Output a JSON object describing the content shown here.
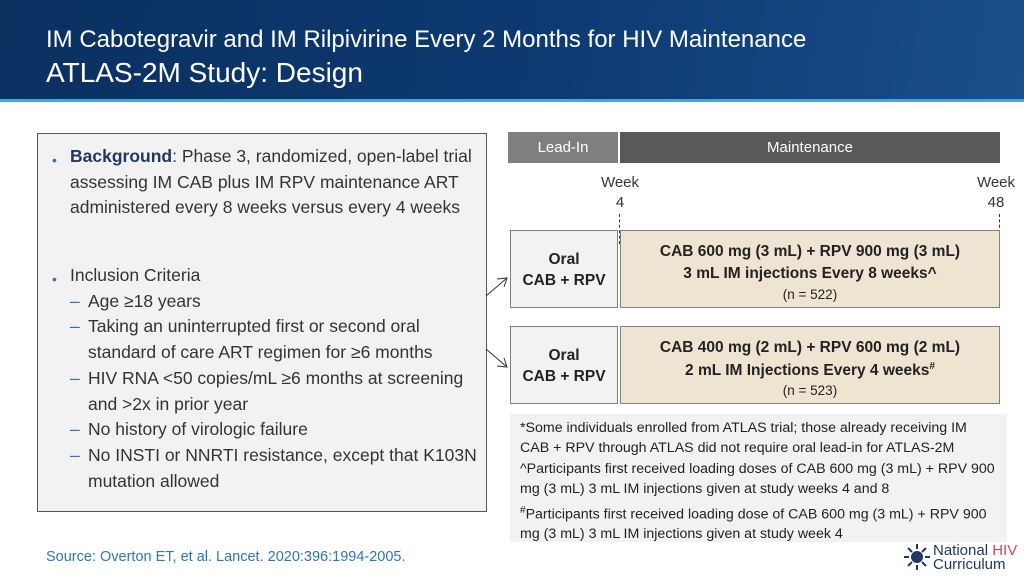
{
  "header": {
    "title_line1": "IM Cabotegravir and IM Rilpivirine Every 2 Months for HIV Maintenance",
    "title_line2": "ATLAS-2M Study: Design"
  },
  "background": {
    "label": "Background",
    "text": ": Phase 3, randomized, open-label trial assessing IM CAB plus IM RPV maintenance ART administered every 8 weeks versus every 4 weeks"
  },
  "inclusion": {
    "label": "Inclusion Criteria",
    "items": [
      "Age ≥18 years",
      "Taking an uninterrupted first or second oral standard of care ART regimen for ≥6 months",
      "HIV RNA <50 copies/mL ≥6 months at screening and >2x in prior year",
      "No history of virologic failure",
      "No INSTI or NNRTI resistance, except that K103N mutation allowed"
    ]
  },
  "timeline": {
    "lead_in": "Lead-In",
    "maintenance": "Maintenance",
    "week_a_label": "Week",
    "week_a_num": "4",
    "week_b_label": "Week",
    "week_b_num": "48"
  },
  "arms": [
    {
      "oral_l1": "Oral",
      "oral_l2": "CAB + RPV",
      "line1": "CAB 600 mg (3 mL) + RPV 900 mg (3 mL)",
      "line2": "3 mL IM injections Every 8 weeks^",
      "n": "(n = 522)"
    },
    {
      "oral_l1": "Oral",
      "oral_l2": "CAB + RPV",
      "line1": "CAB 400 mg (2 mL) + RPV 600 mg (2 mL)",
      "line2": "2 mL IM Injections Every 4 weeks",
      "sup": "#",
      "n": "(n = 523)"
    }
  ],
  "notes": [
    "*Some individuals enrolled from ATLAS trial; those already receiving IM CAB + RPV through ATLAS did not require oral lead-in for ATLAS-2M",
    "^Participants first received loading doses of CAB 600 mg (3 mL) + RPV 900 mg (3 mL) 3 mL IM injections given at study weeks 4 and 8",
    "Participants first received loading dose of CAB 600 mg (3 mL) + RPV 900 mg (3 mL) 3 mL IM injections given at study week 4"
  ],
  "note3_sup": "#",
  "source": "Source: Overton ET, et al. Lancet. 2020:396:1994-2005.",
  "logo": {
    "line1_a": "National ",
    "line1_b": "HIV",
    "line2": "Curriculum"
  }
}
